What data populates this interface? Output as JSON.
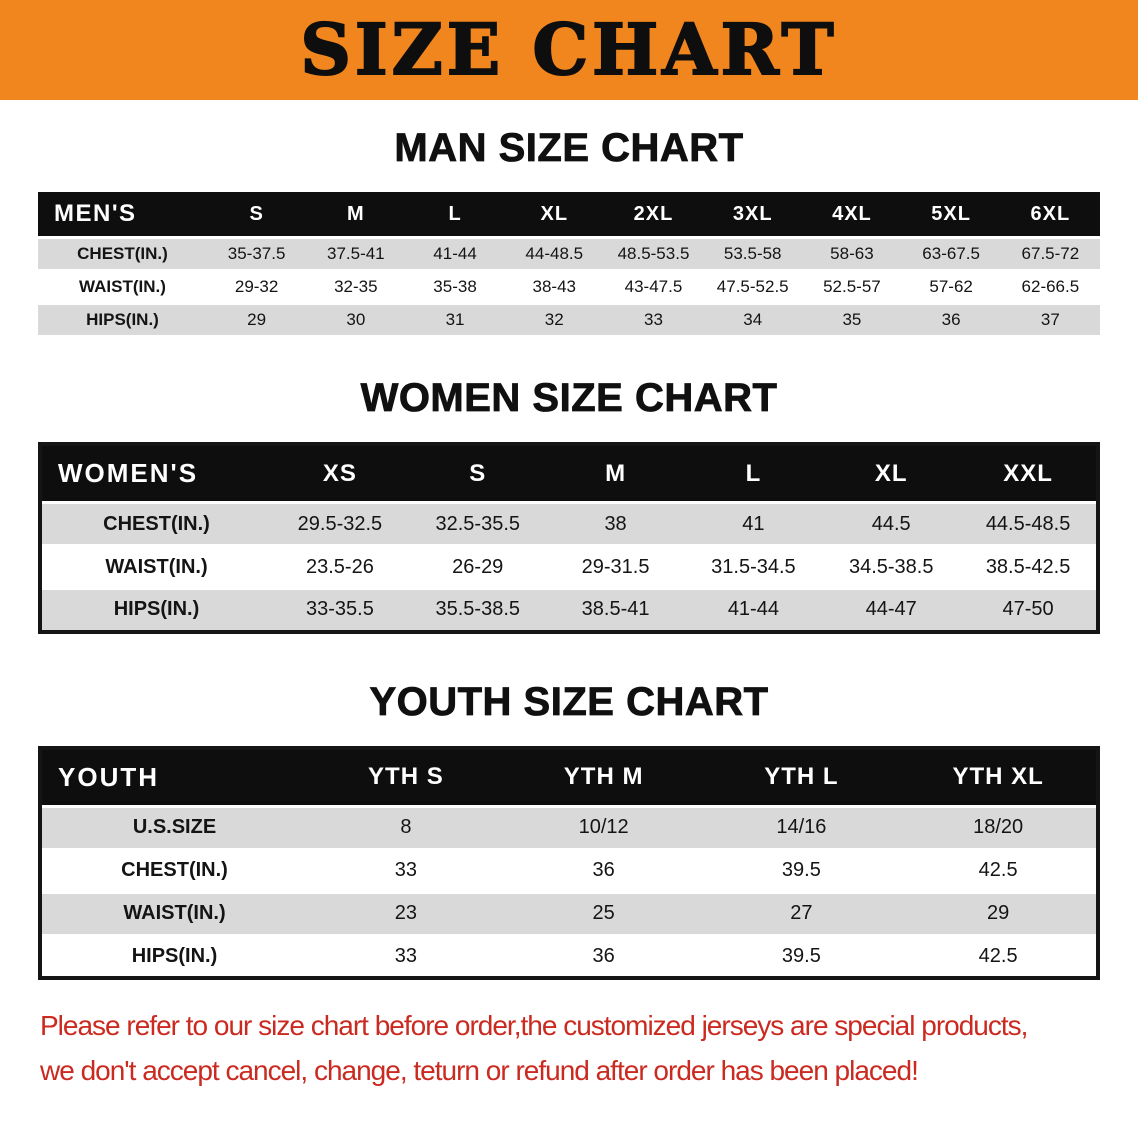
{
  "banner": {
    "title": "SIZE CHART"
  },
  "sections": [
    {
      "heading": "MAN SIZE CHART",
      "table": {
        "header": [
          "MEN'S",
          "S",
          "M",
          "L",
          "XL",
          "2XL",
          "3XL",
          "4XL",
          "5XL",
          "6XL"
        ],
        "rows": [
          {
            "label": "CHEST(IN.)",
            "values": [
              "35-37.5",
              "37.5-41",
              "41-44",
              "44-48.5",
              "48.5-53.5",
              "53.5-58",
              "58-63",
              "63-67.5",
              "67.5-72"
            ]
          },
          {
            "label": "WAIST(IN.)",
            "values": [
              "29-32",
              "32-35",
              "35-38",
              "38-43",
              "43-47.5",
              "47.5-52.5",
              "52.5-57",
              "57-62",
              "62-66.5"
            ]
          },
          {
            "label": "HIPS(IN.)",
            "values": [
              "29",
              "30",
              "31",
              "32",
              "33",
              "34",
              "35",
              "36",
              "37"
            ]
          }
        ]
      }
    },
    {
      "heading": "WOMEN SIZE CHART",
      "table": {
        "header": [
          "WOMEN'S",
          "XS",
          "S",
          "M",
          "L",
          "XL",
          "XXL"
        ],
        "rows": [
          {
            "label": "CHEST(IN.)",
            "values": [
              "29.5-32.5",
              "32.5-35.5",
              "38",
              "41",
              "44.5",
              "44.5-48.5"
            ]
          },
          {
            "label": "WAIST(IN.)",
            "values": [
              "23.5-26",
              "26-29",
              "29-31.5",
              "31.5-34.5",
              "34.5-38.5",
              "38.5-42.5"
            ]
          },
          {
            "label": "HIPS(IN.)",
            "values": [
              "33-35.5",
              "35.5-38.5",
              "38.5-41",
              "41-44",
              "44-47",
              "47-50"
            ]
          }
        ]
      }
    },
    {
      "heading": "YOUTH SIZE CHART",
      "table": {
        "header": [
          "YOUTH",
          "YTH S",
          "YTH M",
          "YTH L",
          "YTH XL"
        ],
        "rows": [
          {
            "label": "U.S.SIZE",
            "values": [
              "8",
              "10/12",
              "14/16",
              "18/20"
            ]
          },
          {
            "label": "CHEST(IN.)",
            "values": [
              "33",
              "36",
              "39.5",
              "42.5"
            ]
          },
          {
            "label": "WAIST(IN.)",
            "values": [
              "23",
              "25",
              "27",
              "29"
            ]
          },
          {
            "label": "HIPS(IN.)",
            "values": [
              "33",
              "36",
              "39.5",
              "42.5"
            ]
          }
        ]
      }
    }
  ],
  "footer": {
    "line1": "Please refer to our size chart before order,the customized jerseys are special products,",
    "line2": "we don't accept cancel, change, teturn or refund after order has been placed!"
  },
  "colors": {
    "banner_orange": "#f1861f",
    "header_black": "#0e0e0e",
    "row_gray": "#d9d9d9",
    "note_red": "#cb2a20"
  }
}
